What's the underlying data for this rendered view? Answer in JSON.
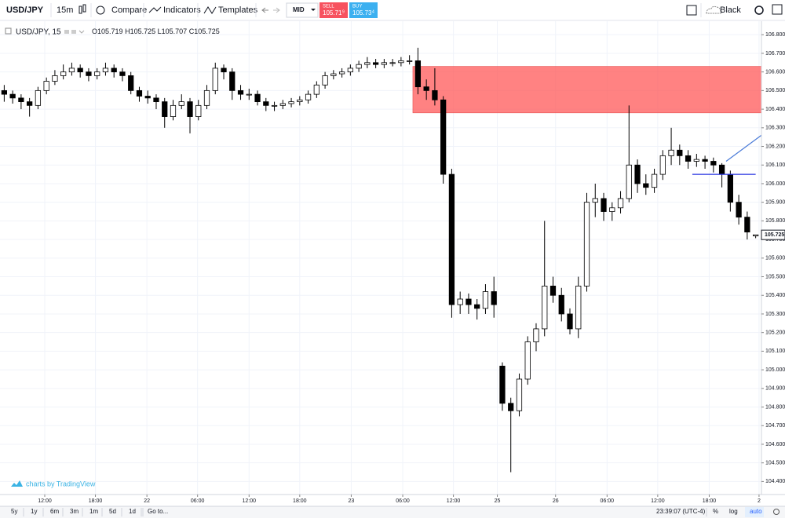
{
  "toolbar": {
    "symbol": "USD/JPY",
    "interval": "15m",
    "compare": "Compare",
    "indicators": "Indicators",
    "templates": "Templates",
    "price_source": "MID",
    "sell_label": "SELL",
    "sell_price": "105.71",
    "sell_pip": "9",
    "buy_label": "BUY",
    "buy_price": "105.73",
    "buy_pip": "4",
    "theme": "Black"
  },
  "chart_data": {
    "type": "candlestick",
    "legend_title": "USD/JPY, 15",
    "ohlc_labels": [
      "O",
      "H",
      "L",
      "C"
    ],
    "watermark": "charts by TradingView",
    "up_color": "#ffffff",
    "down_color": "#000000",
    "wick_color": "#000000",
    "grid": true,
    "open": [
      106.5,
      106.48,
      106.46,
      106.44,
      106.42,
      106.5,
      106.55,
      106.58,
      106.6,
      106.62,
      106.6,
      106.58,
      106.6,
      106.62,
      106.6,
      106.58,
      106.5,
      106.47,
      106.46,
      106.44,
      106.36,
      106.42,
      106.44,
      106.36,
      106.42,
      106.5,
      106.62,
      106.6,
      106.5,
      106.48,
      106.48,
      106.44,
      106.42,
      106.42,
      106.43,
      106.44,
      106.45,
      106.48,
      106.53,
      106.58,
      106.59,
      106.6,
      106.62,
      106.64,
      106.65,
      106.64,
      106.65,
      106.65,
      106.66,
      106.66,
      106.52,
      106.5,
      106.45,
      106.05,
      105.35,
      105.38,
      105.35,
      105.33,
      105.42,
      105.02,
      104.82,
      104.78,
      104.95,
      105.15,
      105.22,
      105.45,
      105.4,
      105.3,
      105.22,
      105.45,
      105.9,
      105.92,
      105.85,
      105.87,
      105.92,
      106.1,
      106.0,
      105.98,
      106.05,
      106.15,
      106.18,
      106.15,
      106.12,
      106.13,
      106.12,
      106.1,
      106.05,
      105.9,
      105.82,
      105.719
    ],
    "high": [
      106.53,
      106.5,
      106.48,
      106.46,
      106.52,
      106.57,
      106.61,
      106.64,
      106.65,
      106.64,
      106.62,
      106.62,
      106.65,
      106.64,
      106.62,
      106.6,
      106.52,
      106.5,
      106.48,
      106.46,
      106.45,
      106.48,
      106.46,
      106.45,
      106.53,
      106.65,
      106.64,
      106.62,
      106.53,
      106.51,
      106.5,
      106.46,
      106.44,
      106.45,
      106.46,
      106.47,
      106.5,
      106.55,
      106.6,
      106.61,
      106.62,
      106.64,
      106.66,
      106.68,
      106.67,
      106.67,
      106.67,
      106.68,
      106.69,
      106.73,
      106.56,
      106.62,
      106.47,
      106.08,
      105.42,
      105.41,
      105.38,
      105.46,
      105.5,
      105.04,
      104.85,
      104.98,
      105.18,
      105.25,
      105.8,
      105.5,
      105.44,
      105.33,
      105.5,
      105.95,
      106.0,
      105.95,
      105.9,
      105.96,
      106.42,
      106.13,
      106.05,
      106.08,
      106.18,
      106.3,
      106.21,
      106.18,
      106.16,
      106.15,
      106.14,
      106.11,
      106.07,
      105.94,
      105.85,
      105.725
    ],
    "low": [
      106.44,
      106.43,
      106.4,
      106.36,
      106.4,
      106.48,
      106.53,
      106.56,
      106.58,
      106.57,
      106.55,
      106.56,
      106.58,
      106.57,
      106.55,
      106.48,
      106.44,
      106.43,
      106.4,
      106.3,
      106.34,
      106.4,
      106.27,
      106.34,
      106.4,
      106.48,
      106.56,
      106.45,
      106.45,
      106.45,
      106.42,
      106.39,
      106.39,
      106.4,
      106.41,
      106.42,
      106.43,
      106.46,
      106.51,
      106.56,
      106.57,
      106.58,
      106.6,
      106.62,
      106.62,
      106.62,
      106.63,
      106.63,
      106.64,
      106.48,
      106.45,
      106.42,
      106.0,
      105.28,
      105.3,
      105.3,
      105.27,
      105.3,
      105.28,
      104.78,
      104.45,
      104.75,
      104.92,
      105.1,
      105.18,
      105.36,
      105.26,
      105.19,
      105.17,
      105.42,
      105.82,
      105.8,
      105.8,
      105.84,
      105.9,
      105.95,
      105.94,
      105.95,
      106.02,
      106.1,
      106.1,
      106.08,
      106.09,
      106.08,
      106.06,
      105.98,
      105.85,
      105.78,
      105.7,
      105.707
    ],
    "close": [
      106.48,
      106.46,
      106.44,
      106.42,
      106.5,
      106.55,
      106.58,
      106.6,
      106.62,
      106.6,
      106.58,
      106.6,
      106.62,
      106.6,
      106.58,
      106.5,
      106.47,
      106.46,
      106.44,
      106.36,
      106.42,
      106.44,
      106.36,
      106.42,
      106.5,
      106.62,
      106.6,
      106.5,
      106.48,
      106.48,
      106.44,
      106.42,
      106.42,
      106.43,
      106.44,
      106.45,
      106.48,
      106.53,
      106.58,
      106.59,
      106.6,
      106.62,
      106.64,
      106.65,
      106.64,
      106.65,
      106.65,
      106.66,
      106.66,
      106.52,
      106.5,
      106.45,
      106.05,
      105.35,
      105.38,
      105.35,
      105.33,
      105.42,
      105.35,
      104.82,
      104.78,
      104.95,
      105.15,
      105.22,
      105.45,
      105.4,
      105.3,
      105.22,
      105.45,
      105.9,
      105.92,
      105.85,
      105.87,
      105.92,
      106.1,
      106.0,
      105.98,
      106.05,
      106.15,
      106.18,
      106.15,
      106.12,
      106.13,
      106.12,
      106.1,
      106.05,
      105.9,
      105.82,
      105.74,
      105.725
    ],
    "xlim": [
      -0.5,
      89.5
    ],
    "xticks": [
      {
        "value": 4.8,
        "label": "12:00"
      },
      {
        "value": 10.8,
        "label": "18:00"
      },
      {
        "value": 16.9,
        "label": "22"
      },
      {
        "value": 22.9,
        "label": "06:00"
      },
      {
        "value": 29.0,
        "label": "12:00"
      },
      {
        "value": 35.0,
        "label": "18:00"
      },
      {
        "value": 41.1,
        "label": "23"
      },
      {
        "value": 47.2,
        "label": "06:00"
      },
      {
        "value": 53.2,
        "label": "12:00"
      },
      {
        "value": 58.4,
        "label": "25"
      },
      {
        "value": 65.3,
        "label": "26"
      },
      {
        "value": 71.4,
        "label": "06:00"
      },
      {
        "value": 77.4,
        "label": "12:00"
      },
      {
        "value": 83.5,
        "label": "18:00"
      },
      {
        "value": 89.4,
        "label": "2"
      }
    ],
    "ylim": [
      104.33,
      106.86
    ],
    "yticks": [
      {
        "value": 104.4,
        "label": "104.400"
      },
      {
        "value": 104.5,
        "label": "104.500"
      },
      {
        "value": 104.6,
        "label": "104.600"
      },
      {
        "value": 104.7,
        "label": "104.700"
      },
      {
        "value": 104.8,
        "label": "104.800"
      },
      {
        "value": 104.9,
        "label": "104.900"
      },
      {
        "value": 105.0,
        "label": "105.000"
      },
      {
        "value": 105.1,
        "label": "105.100"
      },
      {
        "value": 105.2,
        "label": "105.200"
      },
      {
        "value": 105.3,
        "label": "105.300"
      },
      {
        "value": 105.4,
        "label": "105.400"
      },
      {
        "value": 105.5,
        "label": "105.500"
      },
      {
        "value": 105.6,
        "label": "105.600"
      },
      {
        "value": 105.7,
        "label": "105.700"
      },
      {
        "value": 105.8,
        "label": "105.800"
      },
      {
        "value": 105.9,
        "label": "105.900"
      },
      {
        "value": 106.0,
        "label": "106.000"
      },
      {
        "value": 106.1,
        "label": "106.100"
      },
      {
        "value": 106.2,
        "label": "106.200"
      },
      {
        "value": 106.3,
        "label": "106.300"
      },
      {
        "value": 106.4,
        "label": "106.400"
      },
      {
        "value": 106.5,
        "label": "106.500"
      },
      {
        "value": 106.6,
        "label": "106.600"
      },
      {
        "value": 106.7,
        "label": "106.700"
      },
      {
        "value": 106.8,
        "label": "106.800"
      }
    ],
    "zone": {
      "x_start": 48.4,
      "high": 106.63,
      "low": 106.38,
      "color": "rgba(255,82,82,0.72)",
      "border": "#e04040"
    },
    "drawings": [
      {
        "x": [
          81.5,
          89.0
        ],
        "y": [
          106.05,
          106.05
        ],
        "color": "#2431e0"
      },
      {
        "x": [
          85.5,
          89.7
        ],
        "y": [
          106.12,
          106.26
        ],
        "color": "#4a7bd8"
      }
    ]
  },
  "bottom_bar": {
    "ranges": [
      "5y",
      "1y",
      "6m",
      "3m",
      "1m",
      "5d",
      "1d"
    ],
    "goto": "Go to...",
    "clock": "23:39:07 (UTC-4)",
    "percent": "%",
    "log": "log",
    "auto": "auto"
  }
}
